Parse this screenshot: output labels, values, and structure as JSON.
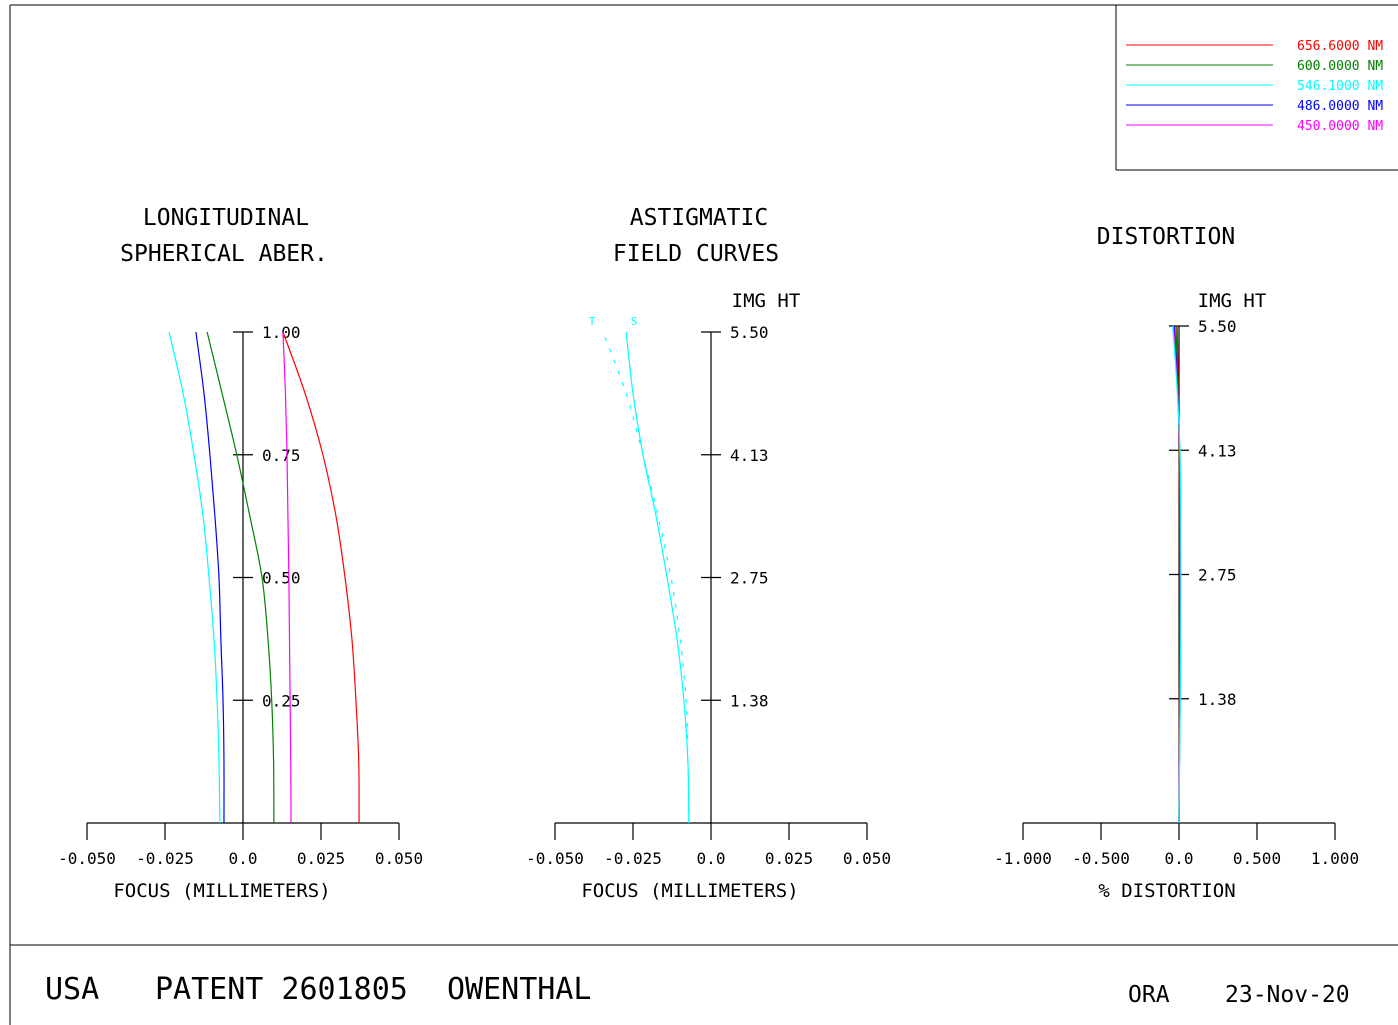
{
  "legend": [
    {
      "label": "656.6000 NM",
      "color": "#ff0000"
    },
    {
      "label": "600.0000 NM",
      "color": "#008000"
    },
    {
      "label": "546.1000 NM",
      "color": "#00ffff"
    },
    {
      "label": "486.0000 NM",
      "color": "#0000ff"
    },
    {
      "label": "450.0000 NM",
      "color": "#ff00ff"
    }
  ],
  "footer": {
    "country": "USA",
    "patent": "PATENT 2601805",
    "name": "OWENTHAL",
    "program": "ORA",
    "date": "23-Nov-20"
  },
  "chart_data": [
    {
      "type": "line",
      "title_lines": [
        "LONGITUDINAL",
        "SPHERICAL ABER."
      ],
      "xlabel": "FOCUS (MILLIMETERS)",
      "ylabel": "",
      "xlim": [
        -0.05,
        0.05
      ],
      "ylim": [
        0,
        1
      ],
      "x_tick_values": [
        -0.05,
        -0.025,
        0,
        0.025,
        0.05
      ],
      "x_tick_labels": [
        "-0.050",
        "-0.025",
        "0.0",
        "0.025",
        "0.050"
      ],
      "y_tick_values": [
        0.25,
        0.5,
        0.75,
        1.0
      ],
      "y_tick_labels": [
        "0.25",
        "0.50",
        "0.75",
        "1.00"
      ],
      "y": [
        0,
        0.125,
        0.25,
        0.375,
        0.5,
        0.625,
        0.75,
        0.875,
        1.0
      ],
      "series": [
        {
          "color": "#ff0000",
          "dashed": false,
          "x": [
            0.0372,
            0.0371,
            0.0362,
            0.0349,
            0.0327,
            0.0298,
            0.0256,
            0.0199,
            0.0128
          ]
        },
        {
          "color": "#008000",
          "dashed": false,
          "x": [
            0.0099,
            0.0098,
            0.0092,
            0.008,
            0.0061,
            0.0022,
            -0.002,
            -0.0067,
            -0.0115
          ]
        },
        {
          "color": "#00ffff",
          "dashed": false,
          "x": [
            -0.0074,
            -0.0077,
            -0.0083,
            -0.0093,
            -0.0109,
            -0.0128,
            -0.0157,
            -0.0192,
            -0.0237
          ]
        },
        {
          "color": "#0000ff",
          "dashed": false,
          "x": [
            -0.0061,
            -0.0061,
            -0.0064,
            -0.0071,
            -0.0077,
            -0.009,
            -0.0106,
            -0.0125,
            -0.0151
          ]
        },
        {
          "color": "#ff00ff",
          "dashed": false,
          "x": [
            0.0154,
            0.0153,
            0.0151,
            0.0149,
            0.0147,
            0.0144,
            0.0141,
            0.0136,
            0.0128
          ]
        }
      ]
    },
    {
      "type": "line",
      "title_lines": [
        "ASTIGMATIC",
        "FIELD CURVES"
      ],
      "xlabel": "FOCUS (MILLIMETERS)",
      "ylabel": "IMG HT",
      "xlim": [
        -0.05,
        0.05
      ],
      "ylim": [
        0,
        5.5
      ],
      "x_tick_values": [
        -0.05,
        -0.025,
        0,
        0.025,
        0.05
      ],
      "x_tick_labels": [
        "-0.050",
        "-0.025",
        "0.0",
        "0.025",
        "0.050"
      ],
      "y_tick_values": [
        1.375,
        2.75,
        4.125,
        5.5
      ],
      "y_tick_labels": [
        "1.38",
        "2.75",
        "4.13",
        "5.50"
      ],
      "y": [
        0,
        0.6875,
        1.375,
        2.0625,
        2.75,
        3.4375,
        4.125,
        4.8125,
        5.5
      ],
      "series": [
        {
          "name": "T",
          "color": "#00ffff",
          "dashed": true,
          "x": [
            -0.0071,
            -0.0074,
            -0.008,
            -0.0099,
            -0.0128,
            -0.017,
            -0.0218,
            -0.0272,
            -0.0346
          ]
        },
        {
          "name": "S",
          "color": "#00ffff",
          "dashed": false,
          "x": [
            -0.0071,
            -0.0074,
            -0.0087,
            -0.0109,
            -0.0141,
            -0.0176,
            -0.0218,
            -0.025,
            -0.0272
          ]
        }
      ]
    },
    {
      "type": "line",
      "title_lines": [
        "DISTORTION"
      ],
      "xlabel": "% DISTORTION",
      "ylabel": "IMG HT",
      "xlim": [
        -1.0,
        1.0
      ],
      "ylim": [
        0,
        5.5
      ],
      "x_tick_values": [
        -1.0,
        -0.5,
        0,
        0.5,
        1.0
      ],
      "x_tick_labels": [
        "-1.000",
        "-0.500",
        "0.0",
        "0.500",
        "1.000"
      ],
      "y_tick_values": [
        1.375,
        2.75,
        4.125,
        5.5
      ],
      "y_tick_labels": [
        "1.38",
        "2.75",
        "4.13",
        "5.50"
      ],
      "y": [
        0,
        0.6875,
        1.375,
        2.0625,
        2.75,
        3.4375,
        4.125,
        4.8125,
        5.5
      ],
      "series": [
        {
          "color": "#ff0000",
          "dashed": false,
          "x": [
            0,
            0.001,
            0.002,
            0.003,
            0.003,
            0.002,
            0.0,
            -0.004,
            -0.012
          ]
        },
        {
          "color": "#008000",
          "dashed": false,
          "x": [
            0,
            0.002,
            0.004,
            0.005,
            0.006,
            0.005,
            0.002,
            -0.006,
            -0.02
          ]
        },
        {
          "color": "#0000ff",
          "dashed": false,
          "x": [
            0,
            0.003,
            0.006,
            0.008,
            0.009,
            0.008,
            0.004,
            -0.009,
            -0.03
          ]
        },
        {
          "color": "#ff00ff",
          "dashed": false,
          "x": [
            0,
            0.003,
            0.007,
            0.009,
            0.01,
            0.009,
            0.005,
            -0.011,
            -0.035
          ]
        },
        {
          "color": "#00ffff",
          "dashed": false,
          "x": [
            0,
            0.004,
            0.008,
            0.011,
            0.012,
            0.011,
            0.006,
            -0.012,
            -0.04
          ]
        }
      ]
    }
  ]
}
